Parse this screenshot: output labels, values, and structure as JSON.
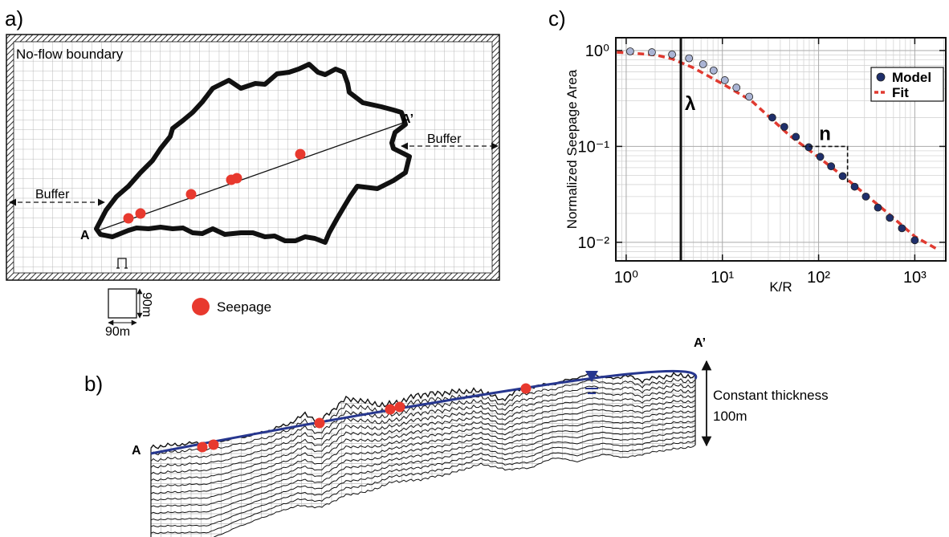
{
  "panel_a": {
    "label": "a)",
    "boundary": "No-flow boundary",
    "point_a": "A",
    "point_a_prime": "A’",
    "buffer_left": "Buffer",
    "buffer_right": "Buffer",
    "cell_height": "90m",
    "cell_width": "90m",
    "legend_seepage": "Seepage"
  },
  "panel_b": {
    "label": "b)",
    "point_a": "A",
    "point_a_prime": "A’",
    "thickness": "Constant thickness",
    "thickness_value": "100m"
  },
  "chart_data": {
    "type": "scatter",
    "panel_label": "c)",
    "x_label": "K/R",
    "y_label": "Normalized Seepage Area",
    "log_x": true,
    "log_y": true,
    "grid": true,
    "legend": "upper right",
    "xlim": [
      0.78,
      2100
    ],
    "ylim": [
      0.0064,
      1.36
    ],
    "xticks": [
      {
        "value": 1,
        "label": "10⁰"
      },
      {
        "value": 10,
        "label": "10¹"
      },
      {
        "value": 100,
        "label": "10²"
      },
      {
        "value": 1000,
        "label": "10³"
      }
    ],
    "yticks": [
      {
        "value": 0.01,
        "label": "10⁻²"
      },
      {
        "value": 0.1,
        "label": "10⁻¹"
      },
      {
        "value": 1,
        "label": "10⁰"
      }
    ],
    "series": [
      {
        "name": "Model",
        "color": "#1f2f6b",
        "point_colors": [
          "#aab4d4",
          "#aab4d4",
          "#aab4d4",
          "#aab4d4",
          "#aab4d4",
          "#aab4d4",
          "#aab4d4",
          "#aab4d4",
          "#aab4d4",
          "#1f2f6b",
          "#1f2f6b",
          "#1f2f6b",
          "#1f2f6b",
          "#1f2f6b",
          "#1f2f6b",
          "#1f2f6b",
          "#1f2f6b",
          "#1f2f6b",
          "#1f2f6b",
          "#1f2f6b",
          "#1f2f6b",
          "#1f2f6b"
        ],
        "x": [
          1.1,
          1.85,
          3.0,
          4.5,
          6.3,
          8.1,
          10.6,
          14,
          19,
          33,
          44,
          58,
          79,
          104,
          135,
          178,
          237,
          310,
          414,
          550,
          735,
          1000
        ],
        "values": [
          0.98,
          0.96,
          0.91,
          0.83,
          0.72,
          0.62,
          0.49,
          0.41,
          0.33,
          0.2,
          0.16,
          0.126,
          0.098,
          0.078,
          0.062,
          0.049,
          0.038,
          0.03,
          0.023,
          0.018,
          0.014,
          0.0105
        ]
      },
      {
        "name": "Fit",
        "color": "#e03a30",
        "style": "dashed",
        "x": [
          0.8,
          1,
          2,
          3,
          5,
          10,
          20,
          50,
          100,
          200,
          500,
          1000,
          1700
        ],
        "values": [
          0.96,
          0.95,
          0.9,
          0.82,
          0.66,
          0.45,
          0.3,
          0.13,
          0.077,
          0.045,
          0.021,
          0.0115,
          0.0085
        ]
      }
    ],
    "annotations": [
      {
        "text": "λ",
        "x": 3.7
      },
      {
        "text": "n",
        "x": [
          68,
          200
        ],
        "y": [
          0.1,
          0.041
        ]
      }
    ]
  }
}
